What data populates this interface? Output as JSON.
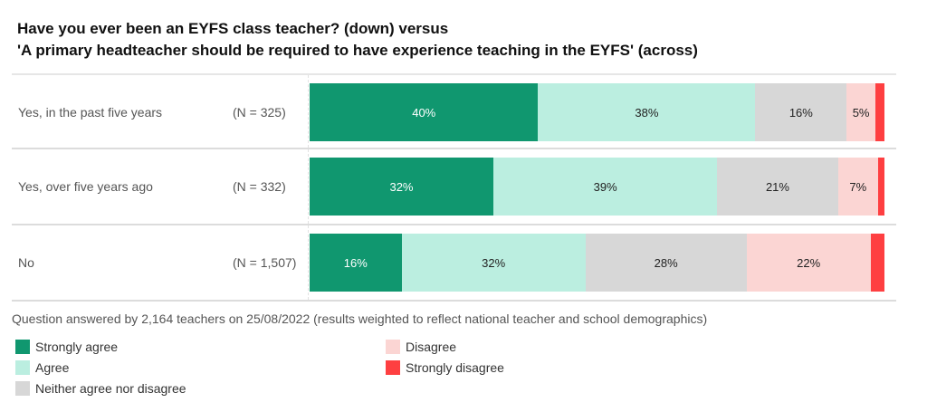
{
  "title": {
    "line1": "Have you ever been an EYFS class teacher? (down) versus",
    "line2": "'A primary headteacher should be required to have experience teaching in the EYFS' (across)"
  },
  "colors": {
    "strongly_agree": "#10976f",
    "agree": "#bbeee0",
    "neither": "#d7d7d7",
    "disagree": "#fbd5d3",
    "strongly_disagree": "#fe3f41"
  },
  "rows": [
    {
      "label": "Yes, in the past five years",
      "n": "(N = 325)",
      "segments": [
        {
          "key": "strongly_agree",
          "value": 40,
          "label": "40%",
          "color": "#10976f",
          "dark": true
        },
        {
          "key": "agree",
          "value": 38,
          "label": "38%",
          "color": "#bbeee0"
        },
        {
          "key": "neither",
          "value": 16,
          "label": "16%",
          "color": "#d7d7d7"
        },
        {
          "key": "disagree",
          "value": 5,
          "label": "5%",
          "color": "#fbd5d3"
        },
        {
          "key": "strongly_disagree",
          "value": 1.6,
          "label": "",
          "color": "#fe3f41"
        }
      ]
    },
    {
      "label": "Yes, over five years ago",
      "n": "(N = 332)",
      "segments": [
        {
          "key": "strongly_agree",
          "value": 32,
          "label": "32%",
          "color": "#10976f",
          "dark": true
        },
        {
          "key": "agree",
          "value": 39,
          "label": "39%",
          "color": "#bbeee0"
        },
        {
          "key": "neither",
          "value": 21,
          "label": "21%",
          "color": "#d7d7d7"
        },
        {
          "key": "disagree",
          "value": 7,
          "label": "7%",
          "color": "#fbd5d3"
        },
        {
          "key": "strongly_disagree",
          "value": 1.1,
          "label": "",
          "color": "#fe3f41"
        }
      ]
    },
    {
      "label": "No",
      "n": "(N = 1,507)",
      "segments": [
        {
          "key": "strongly_agree",
          "value": 16,
          "label": "16%",
          "color": "#10976f",
          "dark": true
        },
        {
          "key": "agree",
          "value": 32,
          "label": "32%",
          "color": "#bbeee0"
        },
        {
          "key": "neither",
          "value": 28,
          "label": "28%",
          "color": "#d7d7d7"
        },
        {
          "key": "disagree",
          "value": 21.6,
          "label": "22%",
          "color": "#fbd5d3"
        },
        {
          "key": "strongly_disagree",
          "value": 2.4,
          "label": "",
          "color": "#fe3f41"
        }
      ]
    }
  ],
  "note": "Question answered by 2,164 teachers on 25/08/2022 (results weighted to reflect national teacher and school demographics)",
  "legend": [
    {
      "label": "Strongly agree",
      "color": "#10976f"
    },
    {
      "label": "Agree",
      "color": "#bbeee0"
    },
    {
      "label": "Neither agree nor disagree",
      "color": "#d7d7d7"
    },
    {
      "label": "Disagree",
      "color": "#fbd5d3"
    },
    {
      "label": "Strongly disagree",
      "color": "#fe3f41"
    }
  ],
  "chart_data": {
    "type": "bar",
    "orientation": "horizontal",
    "stacked": true,
    "normalized": true,
    "title": "Have you ever been an EYFS class teacher? (down) versus 'A primary headteacher should be required to have experience teaching in the EYFS' (across)",
    "categories": [
      "Yes, in the past five years",
      "Yes, over five years ago",
      "No"
    ],
    "sample_sizes": [
      325,
      332,
      1507
    ],
    "series": [
      {
        "name": "Strongly agree",
        "values": [
          40,
          32,
          16
        ],
        "color": "#10976f"
      },
      {
        "name": "Agree",
        "values": [
          38,
          39,
          32
        ],
        "color": "#bbeee0"
      },
      {
        "name": "Neither agree nor disagree",
        "values": [
          16,
          21,
          28
        ],
        "color": "#d7d7d7"
      },
      {
        "name": "Disagree",
        "values": [
          5,
          7,
          22
        ],
        "color": "#fbd5d3"
      },
      {
        "name": "Strongly disagree",
        "values": [
          2,
          1,
          2
        ],
        "color": "#fe3f41"
      }
    ],
    "xlabel": "",
    "ylabel": "",
    "xlim": [
      0,
      100
    ],
    "grid": false,
    "legend_position": "bottom",
    "annotation": "Question answered by 2,164 teachers on 25/08/2022 (results weighted to reflect national teacher and school demographics)"
  }
}
